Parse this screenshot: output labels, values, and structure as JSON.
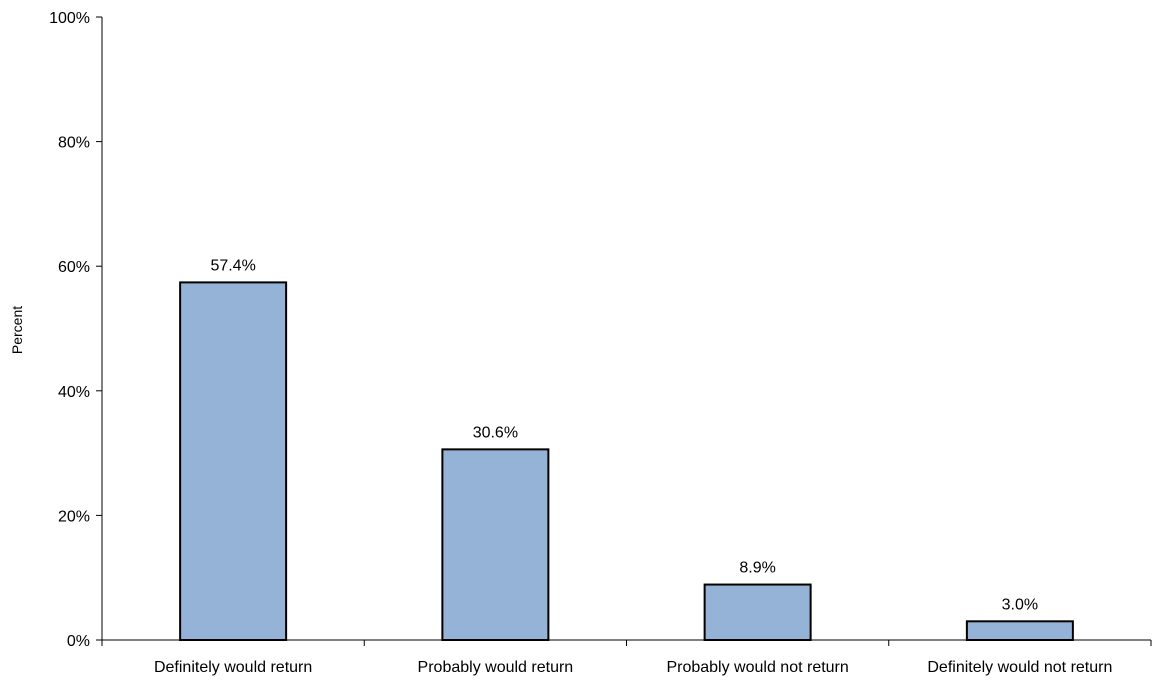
{
  "chart_data": {
    "type": "bar",
    "title": "",
    "xlabel": "",
    "ylabel": "Percent",
    "categories": [
      "Definitely would return",
      "Probably would return",
      "Probably would not return",
      "Definitely would not return"
    ],
    "values": [
      57.4,
      30.6,
      8.9,
      3.0
    ],
    "data_labels": [
      "57.4%",
      "30.6%",
      "8.9%",
      "3.0%"
    ],
    "ylim": [
      0,
      100
    ],
    "yticks": [
      0,
      20,
      40,
      60,
      80,
      100
    ],
    "ytick_labels": [
      "0%",
      "20%",
      "40%",
      "60%",
      "80%",
      "100%"
    ],
    "grid": false,
    "legend": "none",
    "colors": {
      "bar_fill": "#95b3d7",
      "bar_stroke": "#000000",
      "axis": "#000000"
    }
  }
}
